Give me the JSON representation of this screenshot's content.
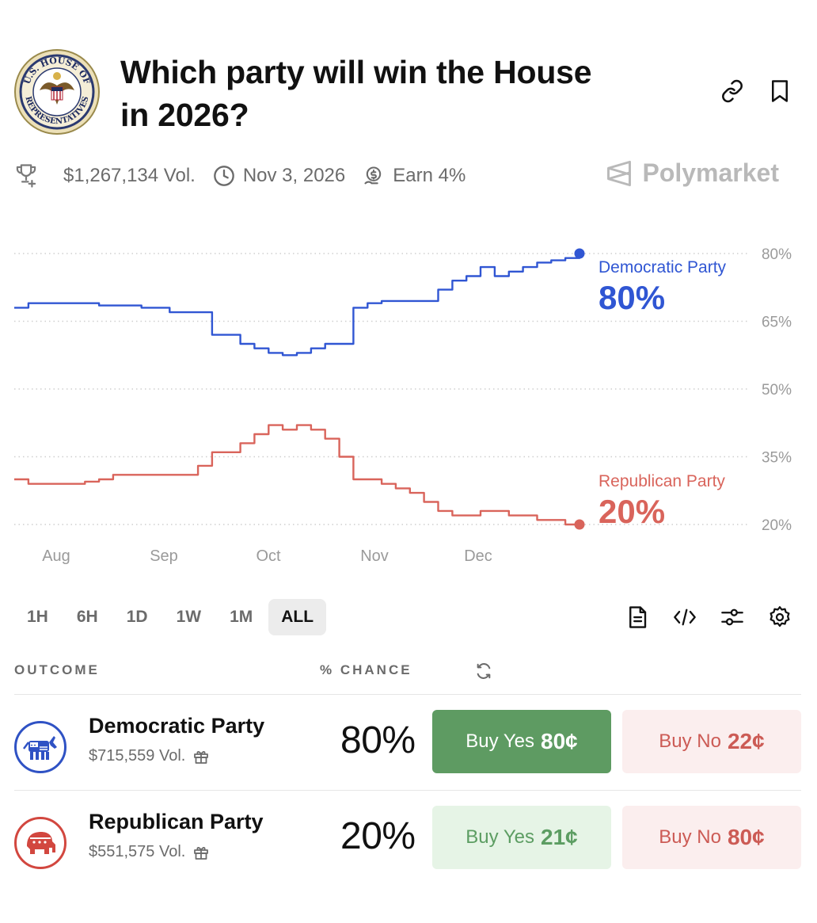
{
  "market": {
    "title": "Which party will win the House in 2026?",
    "seal_text_top": "U.S. HOUSE OF",
    "seal_text_bottom": "REPRESENTATIVES"
  },
  "header_icons": [
    "link-icon",
    "bookmark-icon"
  ],
  "meta": {
    "volume": "$1,267,134 Vol.",
    "end_date": "Nov 3, 2026",
    "earn": "Earn 4%",
    "brand": "Polymarket"
  },
  "chart_data": {
    "type": "line",
    "x_labels": [
      "Aug",
      "Sep",
      "Oct",
      "Nov",
      "Dec"
    ],
    "y_ticks": [
      "80%",
      "65%",
      "50%",
      "35%",
      "20%"
    ],
    "ylim": [
      20,
      80
    ],
    "grid": "dotted horizontal",
    "series": [
      {
        "name": "Democratic Party",
        "label_value": "80%",
        "color": "#3056d3",
        "values": [
          68,
          69,
          69,
          69,
          69,
          69,
          68.5,
          68.5,
          68.5,
          68,
          68,
          67,
          67,
          67,
          62,
          62,
          60,
          59,
          58,
          57.5,
          58,
          59,
          60,
          60,
          68,
          69,
          69.5,
          69.5,
          69.5,
          69.5,
          72,
          74,
          75,
          77,
          75,
          76,
          77,
          78,
          78.5,
          79,
          80
        ]
      },
      {
        "name": "Republican Party",
        "label_value": "20%",
        "color": "#d9645b",
        "values": [
          30,
          29,
          29,
          29,
          29,
          29.5,
          30,
          31,
          31,
          31,
          31,
          31,
          31,
          33,
          36,
          36,
          38,
          40,
          42,
          41,
          42,
          41,
          39,
          35,
          30,
          30,
          29,
          28,
          27,
          25,
          23,
          22,
          22,
          23,
          23,
          22,
          22,
          21,
          21,
          20,
          20
        ]
      }
    ]
  },
  "range": {
    "buttons": [
      "1H",
      "6H",
      "1D",
      "1W",
      "1M",
      "ALL"
    ],
    "active": "ALL"
  },
  "table": {
    "col_outcome": "OUTCOME",
    "col_chance": "% CHANCE",
    "rows": [
      {
        "name": "Democratic Party",
        "volume": "$715,559 Vol.",
        "chance": "80%",
        "buy_yes_label": "Buy Yes",
        "buy_yes_price": "80¢",
        "buy_no_label": "Buy No",
        "buy_no_price": "22¢",
        "color": "#2f52c4"
      },
      {
        "name": "Republican Party",
        "volume": "$551,575 Vol.",
        "chance": "20%",
        "buy_yes_label": "Buy Yes",
        "buy_yes_price": "21¢",
        "buy_no_label": "Buy No",
        "buy_no_price": "80¢",
        "color": "#d2473f"
      }
    ]
  }
}
